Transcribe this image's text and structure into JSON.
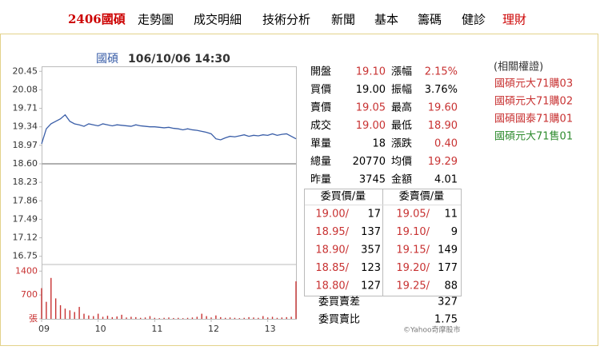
{
  "nav": {
    "items": [
      "2406國碩",
      "走勢圖",
      "成交明細",
      "技術分析",
      "新聞",
      "基本",
      "籌碼",
      "健診",
      "理財"
    ]
  },
  "chart_data": {
    "type": "line",
    "title": "國碩",
    "subtitle": "106/10/06 14:30",
    "x": [
      0,
      5,
      10,
      15,
      20,
      25,
      30,
      35,
      40,
      45,
      50,
      55,
      60,
      65,
      70,
      75,
      80,
      85,
      90,
      95,
      100,
      105,
      110,
      115,
      120,
      125,
      130,
      135,
      140,
      145,
      150,
      155,
      160,
      165,
      170,
      175,
      180,
      185,
      190,
      195,
      200,
      205,
      210,
      215,
      220,
      225,
      230,
      235,
      240,
      245,
      250,
      255,
      260,
      265,
      270
    ],
    "series": [
      {
        "name": "國碩",
        "color": "#3a5ea8",
        "values": [
          19.0,
          19.3,
          19.4,
          19.45,
          19.5,
          19.58,
          19.45,
          19.4,
          19.38,
          19.35,
          19.4,
          19.38,
          19.36,
          19.4,
          19.38,
          19.36,
          19.38,
          19.37,
          19.36,
          19.35,
          19.38,
          19.36,
          19.35,
          19.34,
          19.34,
          19.33,
          19.32,
          19.33,
          19.31,
          19.3,
          19.28,
          19.3,
          19.28,
          19.27,
          19.25,
          19.23,
          19.2,
          19.1,
          19.08,
          19.12,
          19.15,
          19.14,
          19.16,
          19.18,
          19.15,
          19.17,
          19.16,
          19.18,
          19.17,
          19.2,
          19.17,
          19.19,
          19.2,
          19.15,
          19.1
        ]
      }
    ],
    "ref_line": 18.6,
    "ref_color": "#b0b0b0",
    "xlim": [
      0,
      270
    ],
    "xticks": [
      {
        "value": 0,
        "label": "09"
      },
      {
        "value": 60,
        "label": "10"
      },
      {
        "value": 120,
        "label": "11"
      },
      {
        "value": 180,
        "label": "12"
      },
      {
        "value": 240,
        "label": "13"
      }
    ],
    "ylim": [
      16.65,
      20.55
    ],
    "yticks": [
      20.45,
      20.08,
      19.71,
      19.34,
      18.97,
      {
        "value": 18.6,
        "label": "18.60"
      },
      18.23,
      17.86,
      17.49,
      17.12,
      16.75
    ],
    "grid": false,
    "volume": {
      "color": "#c83232",
      "values": [
        900,
        500,
        1200,
        600,
        400,
        300,
        250,
        200,
        350,
        150,
        100,
        80,
        150,
        60,
        90,
        50,
        70,
        120,
        40,
        60,
        50,
        30,
        40,
        80,
        30,
        20,
        30,
        40,
        25,
        30,
        20,
        30,
        40,
        60,
        150,
        80,
        40,
        100,
        50,
        30,
        40,
        30,
        20,
        30,
        50,
        40,
        30,
        80,
        40,
        60,
        30,
        40,
        50,
        60,
        1100
      ],
      "ylim": [
        0,
        1500
      ],
      "yticks": [
        1400,
        700,
        {
          "value": 0,
          "label": "張"
        }
      ]
    }
  },
  "quote": {
    "rows": [
      [
        "開盤",
        "19.10",
        "漲幅",
        "2.15%"
      ],
      [
        "買價",
        "19.00",
        "振幅",
        "3.76%"
      ],
      [
        "賣價",
        "19.05",
        "最高",
        "19.60"
      ],
      [
        "成交",
        "19.00",
        "最低",
        "18.90"
      ],
      [
        "單量",
        "18",
        "漲跌",
        "0.40"
      ],
      [
        "總量",
        "20770",
        "均價",
        "19.29"
      ],
      [
        "昨量",
        "3745",
        "金額",
        "4.01"
      ]
    ]
  },
  "book": {
    "headers": [
      "委買價/量",
      "委賣價/量"
    ],
    "rows": [
      [
        "19.00/",
        "17",
        "19.05/",
        "11"
      ],
      [
        "18.95/",
        "137",
        "19.10/",
        "9"
      ],
      [
        "18.90/",
        "357",
        "19.15/",
        "149"
      ],
      [
        "18.85/",
        "123",
        "19.20/",
        "177"
      ],
      [
        "18.80/",
        "127",
        "19.25/",
        "88"
      ]
    ],
    "summary": [
      [
        "委買賣差",
        "327"
      ],
      [
        "委買賣比",
        "1.75"
      ]
    ]
  },
  "copyright": "©Yahoo奇摩股市",
  "warrants": {
    "title": "(相關權證)",
    "items": [
      "國碩元大71購03",
      "國碩元大71購02",
      "國碩國泰71購01",
      "國碩元大71售01"
    ]
  }
}
